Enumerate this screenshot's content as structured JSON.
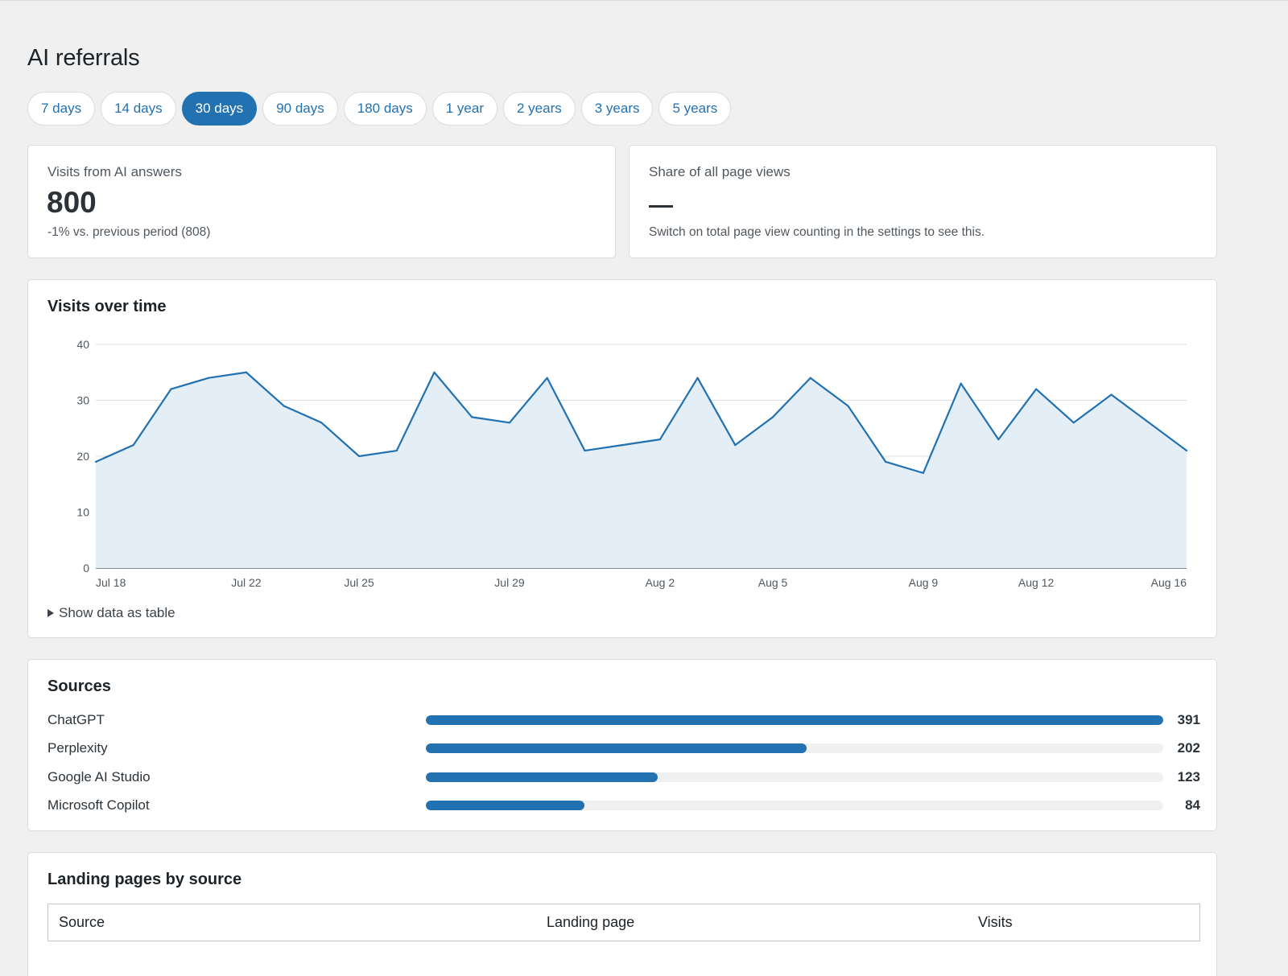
{
  "title": "AI referrals",
  "ranges": [
    "7 days",
    "14 days",
    "30 days",
    "90 days",
    "180 days",
    "1 year",
    "2 years",
    "3 years",
    "5 years"
  ],
  "active_range": "30 days",
  "stats": {
    "visits": {
      "label": "Visits from AI answers",
      "value": "800",
      "sub": "-1% vs. previous period (808)"
    },
    "share": {
      "label": "Share of all page views",
      "value": "—",
      "sub": "Switch on total page view counting in the settings to see this."
    }
  },
  "chart_card": {
    "title": "Visits over time",
    "toggle_label": "Show data as table"
  },
  "chart_data": {
    "type": "area",
    "x": [
      "Jul 18",
      "Jul 19",
      "Jul 20",
      "Jul 21",
      "Jul 22",
      "Jul 23",
      "Jul 24",
      "Jul 25",
      "Jul 26",
      "Jul 27",
      "Jul 28",
      "Jul 29",
      "Jul 30",
      "Jul 31",
      "Aug 1",
      "Aug 2",
      "Aug 3",
      "Aug 4",
      "Aug 5",
      "Aug 6",
      "Aug 7",
      "Aug 8",
      "Aug 9",
      "Aug 10",
      "Aug 11",
      "Aug 12",
      "Aug 13",
      "Aug 14",
      "Aug 15",
      "Aug 16"
    ],
    "series": [
      {
        "values": [
          19,
          22,
          32,
          34,
          35,
          29,
          26,
          20,
          21,
          35,
          27,
          26,
          34,
          21,
          22,
          23,
          34,
          22,
          27,
          34,
          29,
          19,
          17,
          33,
          23,
          32,
          26,
          31,
          26,
          21
        ]
      }
    ],
    "x_tick_labels": [
      "Jul 18",
      "Jul 22",
      "Jul 25",
      "Jul 29",
      "Aug 2",
      "Aug 5",
      "Aug 9",
      "Aug 12",
      "Aug 16"
    ],
    "y_ticks": [
      0,
      10,
      20,
      30,
      40
    ],
    "ylim": [
      0,
      40
    ],
    "grid": true,
    "line_color": "#2271b1",
    "fill_color": "#e3eef7"
  },
  "sources": {
    "title": "Sources",
    "max": 391,
    "items": [
      {
        "name": "ChatGPT",
        "value": 391
      },
      {
        "name": "Perplexity",
        "value": 202
      },
      {
        "name": "Google AI Studio",
        "value": 123
      },
      {
        "name": "Microsoft Copilot",
        "value": 84
      }
    ]
  },
  "landing": {
    "title": "Landing pages by source",
    "headers": {
      "source": "Source",
      "page": "Landing page",
      "visits": "Visits"
    }
  },
  "colors": {
    "accent": "#2271b1",
    "background": "#f0f0f1",
    "card": "#ffffff",
    "border": "#dcdcde"
  }
}
